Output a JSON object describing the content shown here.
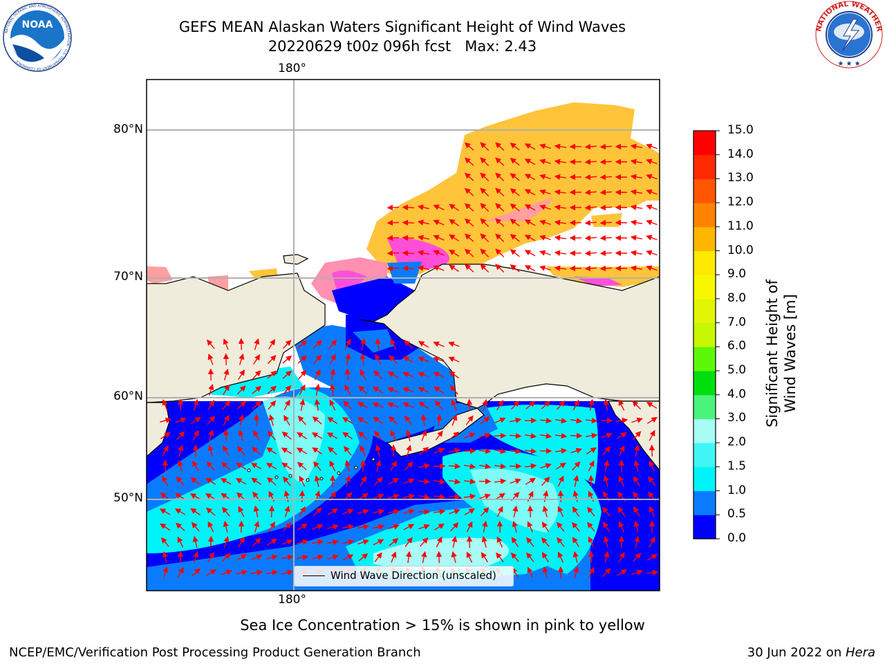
{
  "title": {
    "line1": "GEFS MEAN Alaskan Waters Significant Height of Wind Waves",
    "line2": "20220629 t00z 096h fcst   Max: 2.43"
  },
  "logos": {
    "left": {
      "icon": "noaa-logo",
      "text": "NOAA",
      "ring_text": "NATIONAL OCEANIC AND ATMOSPHERIC ADMINISTRATION · U.S. DEPARTMENT OF COMMERCE"
    },
    "right": {
      "icon": "nws-logo",
      "ring_text": "NATIONAL WEATHER SERVICE"
    }
  },
  "map": {
    "lon_top_label": "180°",
    "lon_bottom_label": "180°",
    "lat_labels": [
      "80°N",
      "70°N",
      "60°N",
      "50°N"
    ],
    "legend_label": "Wind Wave Direction (unscaled)",
    "colors": {
      "land": "#efecdc",
      "ice_low": "#ff4fd8",
      "ice_high": "#ffc43a",
      "waves_0": "#0000ff",
      "waves_05": "#0a7bff",
      "waves_1": "#00f3f7",
      "waves_15": "#7ffcf6",
      "arrow": "#ff0000"
    }
  },
  "colorbar": {
    "label": "Significant Height of Wind Waves [m]",
    "ticks": [
      "15.0",
      "14.0",
      "13.0",
      "12.0",
      "11.0",
      "10.0",
      "9.0",
      "8.0",
      "7.0",
      "6.0",
      "5.0",
      "4.0",
      "3.0",
      "2.0",
      "1.5",
      "1.0",
      "0.5",
      "0.0"
    ],
    "colors": [
      "#0000ff",
      "#0a7bff",
      "#00f3f7",
      "#3ff6f4",
      "#a8fcf6",
      "#4af37a",
      "#00de0d",
      "#5ef70a",
      "#c7f705",
      "#e1f505",
      "#f7f700",
      "#fdea00",
      "#ffb600",
      "#ff8300",
      "#ff5500",
      "#ff2a00",
      "#ff0000"
    ]
  },
  "note": "Sea Ice Concentration > 15% is shown in pink to yellow",
  "footer": {
    "left": "NCEP/EMC/Verification Post Processing Product Generation Branch",
    "right_date": "30 Jun 2022 on ",
    "right_host": "Hera"
  }
}
